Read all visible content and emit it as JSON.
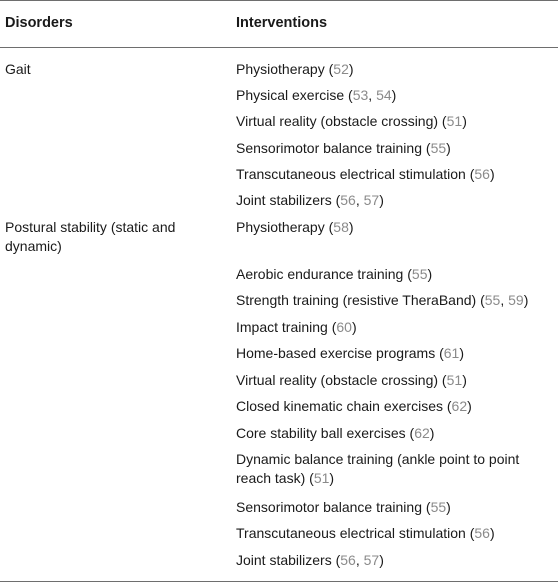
{
  "headers": {
    "disorders": "Disorders",
    "interventions": "Interventions"
  },
  "groups": [
    {
      "disorder": "Gait",
      "items": [
        {
          "text": "Physiotherapy",
          "refs": [
            "52"
          ]
        },
        {
          "text": "Physical exercise",
          "refs": [
            "53",
            "54"
          ]
        },
        {
          "text": "Virtual reality (obstacle crossing)",
          "refs": [
            "51"
          ]
        },
        {
          "text": "Sensorimotor balance training",
          "refs": [
            "55"
          ]
        },
        {
          "text": "Transcutaneous electrical stimulation",
          "refs": [
            "56"
          ]
        },
        {
          "text": "Joint stabilizers",
          "refs": [
            "56",
            "57"
          ]
        }
      ]
    },
    {
      "disorder": "Postural stability (static and dynamic)",
      "items": [
        {
          "text": "Physiotherapy",
          "refs": [
            "58"
          ]
        },
        {
          "text": "Aerobic endurance training",
          "refs": [
            "55"
          ]
        },
        {
          "text": "Strength training (resistive TheraBand)",
          "refs": [
            "55",
            "59"
          ]
        },
        {
          "text": "Impact training",
          "refs": [
            "60"
          ]
        },
        {
          "text": "Home-based exercise programs",
          "refs": [
            "61"
          ]
        },
        {
          "text": "Virtual reality (obstacle crossing)",
          "refs": [
            "51"
          ]
        },
        {
          "text": "Closed kinematic chain exercises",
          "refs": [
            "62"
          ]
        },
        {
          "text": "Core stability ball exercises",
          "refs": [
            "62"
          ]
        },
        {
          "text": "Dynamic balance training (ankle point to point reach task)",
          "refs": [
            "51"
          ]
        },
        {
          "text": "Sensorimotor balance training",
          "refs": [
            "55"
          ]
        },
        {
          "text": "Transcutaneous electrical stimulation",
          "refs": [
            "56"
          ]
        },
        {
          "text": "Joint stabilizers",
          "refs": [
            "56",
            "57"
          ]
        }
      ]
    }
  ]
}
